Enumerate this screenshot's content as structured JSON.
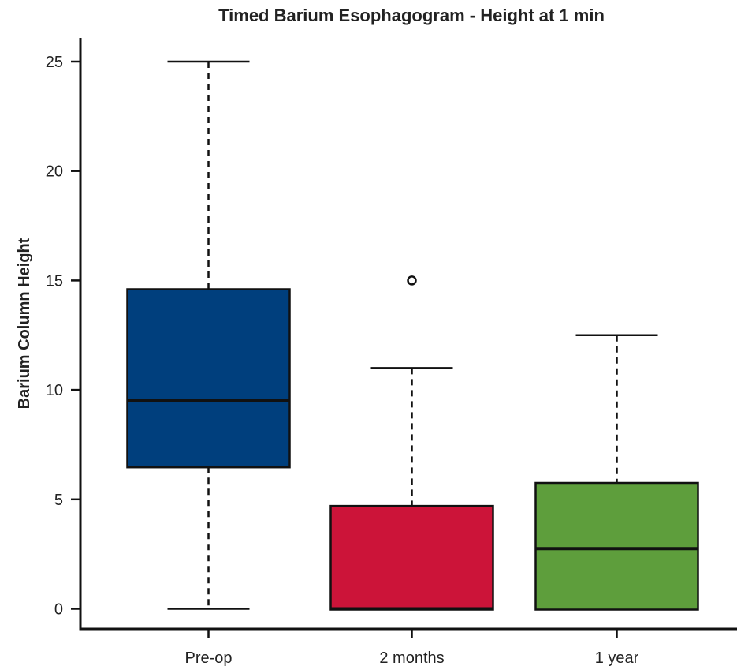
{
  "chart_data": {
    "type": "boxplot",
    "title": "Timed Barium Esophagogram - Height at 1 min",
    "xlabel": "",
    "ylabel": "Barium Column Height",
    "ylim": [
      0,
      25
    ],
    "yticks": [
      "0",
      "5",
      "10",
      "15",
      "20",
      "25"
    ],
    "categories": [
      "Pre-op",
      "2 months",
      "1 year"
    ],
    "boxes": [
      {
        "category": "Pre-op",
        "min": 0,
        "q1": 6.5,
        "median": 9.5,
        "q3": 14.6,
        "max": 25,
        "outliers": [],
        "color": "#003f7d"
      },
      {
        "category": "2 months",
        "min": 0,
        "q1": 0,
        "median": 0,
        "q3": 4.7,
        "max": 11,
        "outliers": [
          15
        ],
        "color": "#cc1439"
      },
      {
        "category": "1 year",
        "min": 0,
        "q1": 0,
        "median": 2.75,
        "q3": 5.75,
        "max": 12.5,
        "outliers": [],
        "color": "#5e9e3c"
      }
    ],
    "grid": false,
    "legend": "none"
  }
}
